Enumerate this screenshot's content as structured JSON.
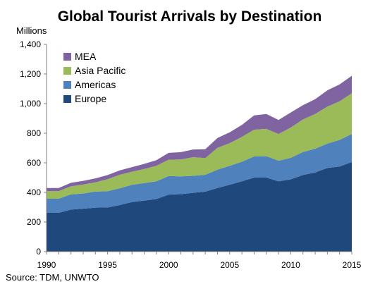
{
  "chart_data": {
    "type": "area",
    "stacked": true,
    "title": "Global Tourist Arrivals by Destination",
    "ylabel": "Millions",
    "ylim": [
      0,
      1400
    ],
    "yticks": [
      0,
      200,
      400,
      600,
      800,
      1000,
      1200,
      1400
    ],
    "ytick_labels": [
      "0",
      "200",
      "400",
      "600",
      "800",
      "1,000",
      "1,200",
      "1,400"
    ],
    "xlim": [
      1990,
      2015
    ],
    "xticks": [
      1990,
      1995,
      2000,
      2005,
      2010,
      2015
    ],
    "xtick_labels": [
      "1990",
      "1995",
      "2000",
      "2005",
      "2010",
      "2015"
    ],
    "grid": false,
    "legend_position": "top-left",
    "x": [
      1990,
      1991,
      1992,
      1993,
      1994,
      1995,
      1996,
      1997,
      1998,
      1999,
      2000,
      2001,
      2002,
      2003,
      2004,
      2005,
      2006,
      2007,
      2008,
      2009,
      2010,
      2011,
      2012,
      2013,
      2014,
      2015
    ],
    "series": [
      {
        "name": "Europe",
        "color": "#1f497d",
        "values": [
          262,
          262,
          284,
          290,
          297,
          298,
          315,
          335,
          345,
          355,
          385,
          388,
          397,
          405,
          430,
          452,
          475,
          500,
          500,
          475,
          488,
          518,
          535,
          565,
          575,
          605
        ]
      },
      {
        "name": "Americas",
        "color": "#4f81bd",
        "values": [
          95,
          95,
          102,
          103,
          108,
          110,
          113,
          116,
          118,
          120,
          126,
          120,
          115,
          114,
          124,
          128,
          132,
          143,
          145,
          139,
          146,
          155,
          160,
          165,
          180,
          190
        ]
      },
      {
        "name": "Asia Pacific",
        "color": "#9bbb59",
        "values": [
          51,
          51,
          55,
          60,
          63,
          81,
          91,
          89,
          95,
          105,
          110,
          115,
          126,
          113,
          147,
          153,
          168,
          181,
          184,
          181,
          204,
          220,
          235,
          250,
          260,
          275
        ]
      },
      {
        "name": "MEA",
        "color": "#8064a2",
        "values": [
          22,
          22,
          24,
          25,
          27,
          28,
          30,
          31,
          35,
          38,
          46,
          49,
          52,
          60,
          67,
          73,
          81,
          96,
          101,
          94,
          102,
          96,
          100,
          110,
          115,
          118
        ]
      }
    ],
    "legend": [
      "MEA",
      "Asia Pacific",
      "Americas",
      "Europe"
    ],
    "source": "Source: TDM, UNWTO"
  }
}
